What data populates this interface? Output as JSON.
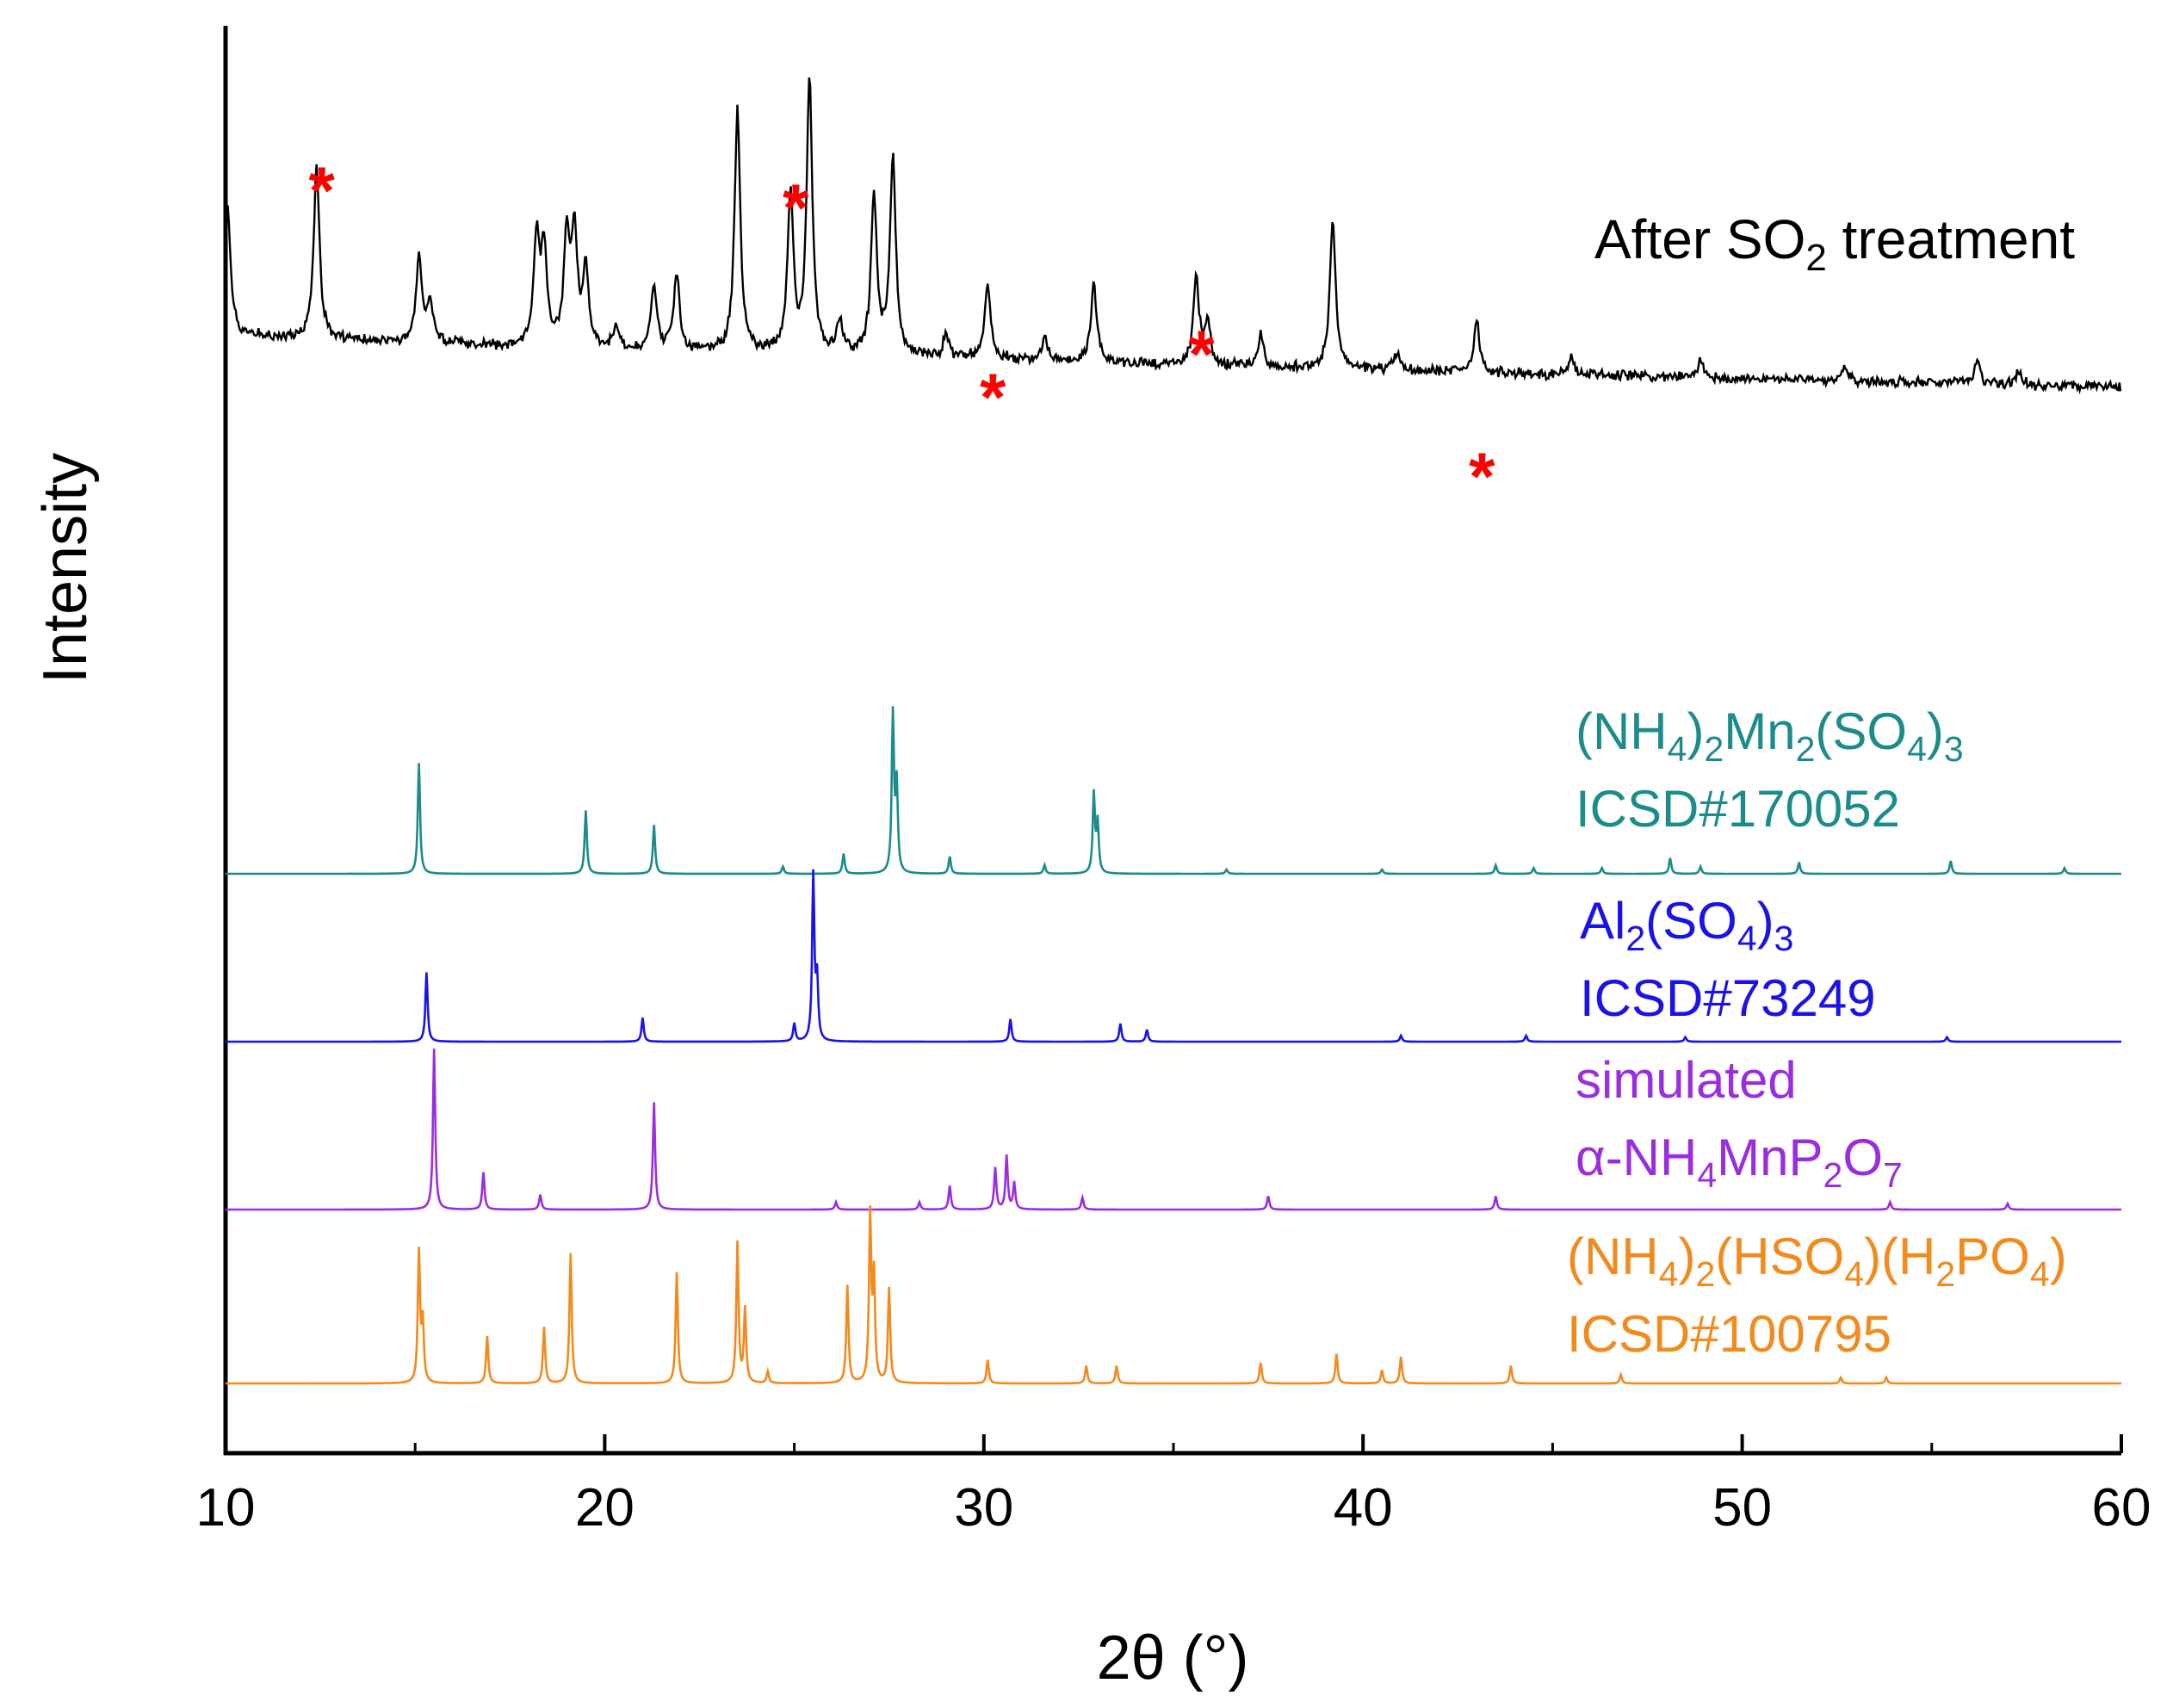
{
  "chart_data": {
    "type": "line",
    "title": "",
    "xlabel": "2θ (°)",
    "ylabel": "Intensity",
    "xlim": [
      10,
      60
    ],
    "xticks": [
      10,
      20,
      30,
      40,
      50,
      60
    ],
    "y_ticks_shown": false,
    "marker_symbol": "*",
    "series": [
      {
        "name": "After SO2 treatment",
        "color": "#000000",
        "label_parts": [
          "After SO",
          "2",
          " treatment"
        ],
        "label_sub": [
          false,
          true,
          false
        ],
        "baseline": [
          [
            10.2,
            100
          ],
          [
            12,
            98
          ],
          [
            15,
            96
          ],
          [
            20,
            93
          ],
          [
            25,
            91
          ],
          [
            30,
            89
          ],
          [
            35,
            86
          ],
          [
            40,
            84
          ],
          [
            45,
            82
          ],
          [
            50,
            80
          ],
          [
            55,
            78
          ],
          [
            60,
            76
          ]
        ],
        "peaks": [
          [
            10.05,
            60
          ],
          [
            12.4,
            80
          ],
          [
            15.1,
            40
          ],
          [
            15.4,
            18
          ],
          [
            18.2,
            48
          ],
          [
            18.4,
            45
          ],
          [
            19.0,
            50
          ],
          [
            19.2,
            52
          ],
          [
            19.5,
            36
          ],
          [
            20.3,
            10
          ],
          [
            21.3,
            30
          ],
          [
            21.9,
            36
          ],
          [
            23.5,
            110
          ],
          [
            24.9,
            72
          ],
          [
            25.4,
            125
          ],
          [
            26.2,
            14
          ],
          [
            27.1,
            74
          ],
          [
            27.6,
            90
          ],
          [
            29.0,
            10
          ],
          [
            30.1,
            35
          ],
          [
            31.6,
            10
          ],
          [
            32.9,
            36
          ],
          [
            35.6,
            40
          ],
          [
            35.9,
            20
          ],
          [
            37.3,
            14
          ],
          [
            39.2,
            68
          ],
          [
            40.9,
            8
          ],
          [
            43.0,
            24
          ],
          [
            45.5,
            8
          ],
          [
            48.9,
            7
          ],
          [
            52.7,
            7
          ],
          [
            56.2,
            10
          ],
          [
            57.3,
            6
          ]
        ],
        "starred_peaks": [
          12.4,
          24.9,
          30.1,
          35.6,
          43.0
        ]
      },
      {
        "name": "(NH4)2Mn2(SO4)3 ICSD#170052",
        "color": "#1b8c8a",
        "label_parts": [
          "(NH",
          "4",
          ")",
          "2",
          "Mn",
          "2",
          "(SO",
          "4",
          ")",
          "3"
        ],
        "label_sub": [
          false,
          true,
          false,
          true,
          false,
          true,
          false,
          true,
          false,
          true
        ],
        "label_line2": "ICSD#170052",
        "peaks": [
          [
            15.1,
            77
          ],
          [
            19.5,
            44
          ],
          [
            21.3,
            34
          ],
          [
            24.7,
            5
          ],
          [
            26.3,
            14
          ],
          [
            27.6,
            110
          ],
          [
            27.7,
            60
          ],
          [
            29.1,
            12
          ],
          [
            31.6,
            6
          ],
          [
            32.9,
            55
          ],
          [
            33.0,
            35
          ],
          [
            36.4,
            3
          ],
          [
            40.5,
            3
          ],
          [
            43.5,
            6
          ],
          [
            44.5,
            4
          ],
          [
            46.3,
            4
          ],
          [
            48.1,
            11
          ],
          [
            48.9,
            5
          ],
          [
            51.5,
            8
          ],
          [
            55.5,
            9
          ],
          [
            58.5,
            4
          ]
        ]
      },
      {
        "name": "Al2(SO4)3 ICSD#73249",
        "color": "#1a12e8",
        "label_parts": [
          "Al",
          "2",
          "(SO",
          "4",
          ")",
          "3"
        ],
        "label_sub": [
          false,
          true,
          false,
          true,
          false,
          true
        ],
        "label_line2": "ICSD#73249",
        "peaks": [
          [
            15.3,
            46
          ],
          [
            21.0,
            16
          ],
          [
            25.0,
            12
          ],
          [
            25.5,
            110
          ],
          [
            25.6,
            40
          ],
          [
            30.7,
            15
          ],
          [
            33.6,
            12
          ],
          [
            34.3,
            8
          ],
          [
            41.0,
            4
          ],
          [
            44.3,
            4
          ],
          [
            48.5,
            3
          ],
          [
            55.4,
            3
          ]
        ]
      },
      {
        "name": "simulated α-NH4MnP2O7",
        "color": "#9b2de0",
        "label_parts": [
          "α-NH",
          "4",
          "MnP",
          "2",
          "O",
          "7"
        ],
        "label_sub": [
          false,
          true,
          false,
          true,
          false,
          true
        ],
        "label_line1": "simulated",
        "peaks": [
          [
            15.5,
            108
          ],
          [
            16.8,
            25
          ],
          [
            18.3,
            10
          ],
          [
            21.3,
            72
          ],
          [
            26.1,
            5
          ],
          [
            28.3,
            5
          ],
          [
            29.1,
            16
          ],
          [
            30.3,
            28
          ],
          [
            30.6,
            36
          ],
          [
            30.8,
            18
          ],
          [
            32.6,
            8
          ],
          [
            37.5,
            9
          ],
          [
            43.5,
            9
          ],
          [
            53.9,
            5
          ],
          [
            57.0,
            4
          ]
        ]
      },
      {
        "name": "(NH4)2(HSO4)(H2PO4) ICSD#100795",
        "color": "#f28a1c",
        "label_parts": [
          "(NH",
          "4",
          ")",
          "2",
          "(HSO",
          "4",
          ")(H",
          "2",
          "PO",
          "4",
          ")"
        ],
        "label_sub": [
          false,
          true,
          false,
          true,
          false,
          true,
          false,
          true,
          false,
          true,
          false
        ],
        "label_line2": "ICSD#100795",
        "peaks": [
          [
            15.1,
            88
          ],
          [
            15.2,
            40
          ],
          [
            16.9,
            32
          ],
          [
            18.4,
            38
          ],
          [
            19.1,
            88
          ],
          [
            21.9,
            75
          ],
          [
            23.5,
            95
          ],
          [
            23.7,
            50
          ],
          [
            24.3,
            8
          ],
          [
            26.4,
            66
          ],
          [
            27.0,
            112
          ],
          [
            27.1,
            70
          ],
          [
            27.5,
            64
          ],
          [
            30.1,
            16
          ],
          [
            32.7,
            12
          ],
          [
            33.5,
            12
          ],
          [
            37.3,
            14
          ],
          [
            39.3,
            20
          ],
          [
            40.5,
            9
          ],
          [
            41.0,
            18
          ],
          [
            43.9,
            12
          ],
          [
            46.8,
            6
          ],
          [
            52.6,
            4
          ],
          [
            53.8,
            4
          ]
        ]
      }
    ]
  }
}
